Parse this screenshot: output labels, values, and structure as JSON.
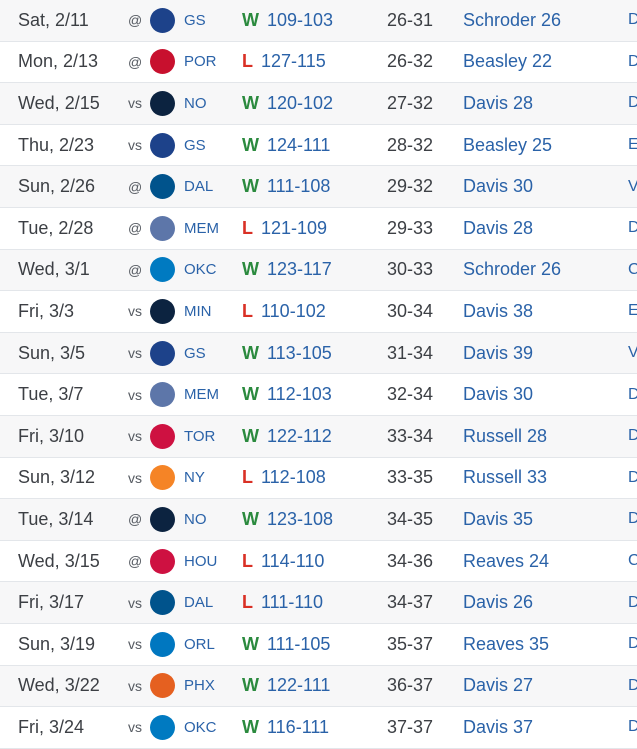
{
  "games": [
    {
      "date": "Sat, 2/11",
      "loc": "@",
      "opp": "GS",
      "logo_color": "#1d428a",
      "result": "W",
      "score": "109-103",
      "record": "26-31",
      "leader": "Schroder 26",
      "next": "D"
    },
    {
      "date": "Mon, 2/13",
      "loc": "@",
      "opp": "POR",
      "logo_color": "#c8102e",
      "result": "L",
      "score": "127-115",
      "record": "26-32",
      "leader": "Beasley 22",
      "next": "D"
    },
    {
      "date": "Wed, 2/15",
      "loc": "vs",
      "opp": "NO",
      "logo_color": "#0c2340",
      "result": "W",
      "score": "120-102",
      "record": "27-32",
      "leader": "Davis 28",
      "next": "D"
    },
    {
      "date": "Thu, 2/23",
      "loc": "vs",
      "opp": "GS",
      "logo_color": "#1d428a",
      "result": "W",
      "score": "124-111",
      "record": "28-32",
      "leader": "Beasley 25",
      "next": "E"
    },
    {
      "date": "Sun, 2/26",
      "loc": "@",
      "opp": "DAL",
      "logo_color": "#00538c",
      "result": "W",
      "score": "111-108",
      "record": "29-32",
      "leader": "Davis 30",
      "next": "V"
    },
    {
      "date": "Tue, 2/28",
      "loc": "@",
      "opp": "MEM",
      "logo_color": "#5d76a9",
      "result": "L",
      "score": "121-109",
      "record": "29-33",
      "leader": "Davis 28",
      "next": "D"
    },
    {
      "date": "Wed, 3/1",
      "loc": "@",
      "opp": "OKC",
      "logo_color": "#007ac1",
      "result": "W",
      "score": "123-117",
      "record": "30-33",
      "leader": "Schroder 26",
      "next": "C"
    },
    {
      "date": "Fri, 3/3",
      "loc": "vs",
      "opp": "MIN",
      "logo_color": "#0c2340",
      "result": "L",
      "score": "110-102",
      "record": "30-34",
      "leader": "Davis 38",
      "next": "E"
    },
    {
      "date": "Sun, 3/5",
      "loc": "vs",
      "opp": "GS",
      "logo_color": "#1d428a",
      "result": "W",
      "score": "113-105",
      "record": "31-34",
      "leader": "Davis 39",
      "next": "V"
    },
    {
      "date": "Tue, 3/7",
      "loc": "vs",
      "opp": "MEM",
      "logo_color": "#5d76a9",
      "result": "W",
      "score": "112-103",
      "record": "32-34",
      "leader": "Davis 30",
      "next": "D"
    },
    {
      "date": "Fri, 3/10",
      "loc": "vs",
      "opp": "TOR",
      "logo_color": "#ce1141",
      "result": "W",
      "score": "122-112",
      "record": "33-34",
      "leader": "Russell 28",
      "next": "D"
    },
    {
      "date": "Sun, 3/12",
      "loc": "vs",
      "opp": "NY",
      "logo_color": "#f58426",
      "result": "L",
      "score": "112-108",
      "record": "33-35",
      "leader": "Russell 33",
      "next": "D"
    },
    {
      "date": "Tue, 3/14",
      "loc": "@",
      "opp": "NO",
      "logo_color": "#0c2340",
      "result": "W",
      "score": "123-108",
      "record": "34-35",
      "leader": "Davis 35",
      "next": "D"
    },
    {
      "date": "Wed, 3/15",
      "loc": "@",
      "opp": "HOU",
      "logo_color": "#ce1141",
      "result": "L",
      "score": "114-110",
      "record": "34-36",
      "leader": "Reaves 24",
      "next": "C"
    },
    {
      "date": "Fri, 3/17",
      "loc": "vs",
      "opp": "DAL",
      "logo_color": "#00538c",
      "result": "L",
      "score": "111-110",
      "record": "34-37",
      "leader": "Davis 26",
      "next": "D"
    },
    {
      "date": "Sun, 3/19",
      "loc": "vs",
      "opp": "ORL",
      "logo_color": "#0077c0",
      "result": "W",
      "score": "111-105",
      "record": "35-37",
      "leader": "Reaves 35",
      "next": "D"
    },
    {
      "date": "Wed, 3/22",
      "loc": "vs",
      "opp": "PHX",
      "logo_color": "#e56020",
      "result": "W",
      "score": "122-111",
      "record": "36-37",
      "leader": "Davis 27",
      "next": "D"
    },
    {
      "date": "Fri, 3/24",
      "loc": "vs",
      "opp": "OKC",
      "logo_color": "#007ac1",
      "result": "W",
      "score": "116-111",
      "record": "37-37",
      "leader": "Davis 37",
      "next": "D"
    }
  ]
}
